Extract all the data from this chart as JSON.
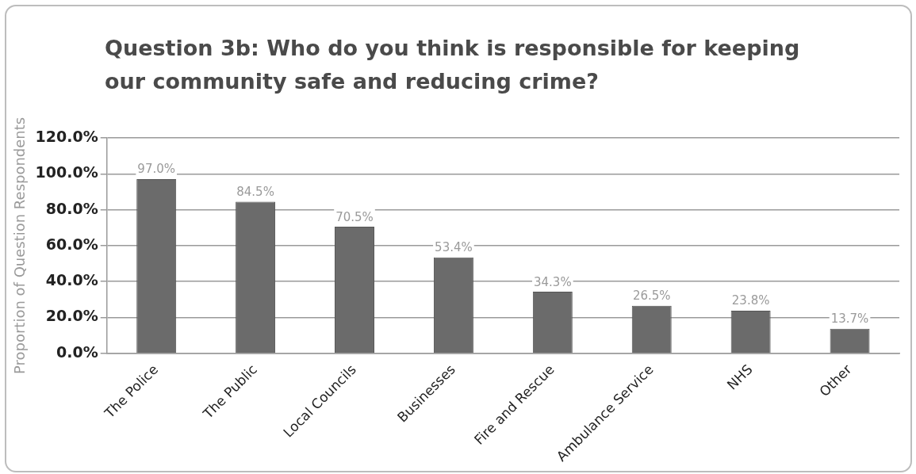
{
  "chart_data": {
    "type": "bar",
    "title": "Question 3b: Who do you think is responsible for keeping our community safe and reducing crime?",
    "ylabel": "Proportion of Question Respondents",
    "categories": [
      "The Police",
      "The Public",
      "Local Councils",
      "Businesses",
      "Fire and Rescue",
      "Ambulance Service",
      "NHS",
      "Other"
    ],
    "values": [
      97.0,
      84.5,
      70.5,
      53.4,
      34.3,
      26.5,
      23.8,
      13.7
    ],
    "value_labels": [
      "97.0%",
      "84.5%",
      "70.5%",
      "53.4%",
      "34.3%",
      "26.5%",
      "23.8%",
      "13.7%"
    ],
    "color": "#6b6b6b",
    "ylim": [
      0,
      120
    ],
    "yticks": [
      {
        "value": 0,
        "label": "0.0%"
      },
      {
        "value": 20,
        "label": "20.0%"
      },
      {
        "value": 40,
        "label": "40.0%"
      },
      {
        "value": 60,
        "label": "60.0%"
      },
      {
        "value": 80,
        "label": "80.0%"
      },
      {
        "value": 100,
        "label": "100.0%"
      },
      {
        "value": 120,
        "label": "120.0%"
      }
    ],
    "grid": "y",
    "legend": false
  }
}
